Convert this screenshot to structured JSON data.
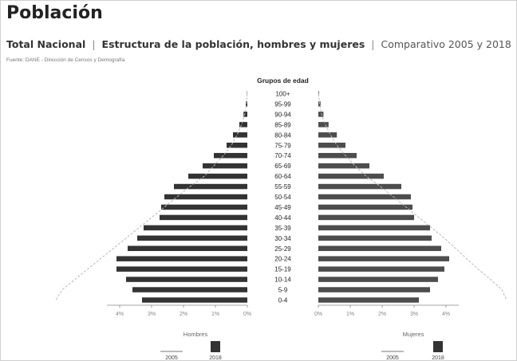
{
  "header": {
    "title": "Población",
    "subtitle_part1": "Total Nacional",
    "subtitle_part2": "Estructura de la población, hombres y mujeres",
    "subtitle_part3": "Comparativo 2005 y 2018",
    "source": "Fuente: DANE - Dirección de Censos y Demografía"
  },
  "colors": {
    "bar_men": "#333333",
    "bar_women": "#4d4d4d",
    "line_2005": "#b8b8b8",
    "text": "#222222"
  },
  "chart_data": {
    "type": "bar",
    "orientation": "horizontal-population-pyramid",
    "title": "Grupos de edad",
    "categories": [
      "100+",
      "95-99",
      "90-94",
      "85-89",
      "80-84",
      "75-79",
      "70-74",
      "65-69",
      "60-64",
      "55-59",
      "50-54",
      "45-49",
      "40-44",
      "35-39",
      "30-34",
      "25-29",
      "20-24",
      "15-19",
      "10-14",
      "5-9",
      "0-4"
    ],
    "series": [
      {
        "name": "Hombres",
        "year": "2018",
        "side": "left",
        "values": [
          0.01,
          0.05,
          0.12,
          0.25,
          0.45,
          0.65,
          1.05,
          1.4,
          1.85,
          2.3,
          2.6,
          2.7,
          2.75,
          3.25,
          3.45,
          3.75,
          4.1,
          4.1,
          3.8,
          3.6,
          3.3
        ]
      },
      {
        "name": "Mujeres",
        "year": "2018",
        "side": "right",
        "values": [
          0.02,
          0.07,
          0.16,
          0.32,
          0.58,
          0.85,
          1.2,
          1.6,
          2.05,
          2.6,
          2.9,
          2.95,
          3.0,
          3.5,
          3.55,
          3.85,
          4.1,
          3.95,
          3.75,
          3.5,
          3.15
        ]
      },
      {
        "name": "Hombres",
        "year": "2005",
        "side": "left",
        "values": [
          0.01,
          0.03,
          0.08,
          0.18,
          0.32,
          0.5,
          0.75,
          1.05,
          1.35,
          1.8,
          2.2,
          2.6,
          3.0,
          3.4,
          3.8,
          4.2,
          4.6,
          5.0,
          5.4,
          5.8,
          6.0
        ]
      },
      {
        "name": "Mujeres",
        "year": "2005",
        "side": "right",
        "values": [
          0.01,
          0.04,
          0.1,
          0.22,
          0.38,
          0.58,
          0.85,
          1.15,
          1.5,
          1.95,
          2.35,
          2.75,
          3.15,
          3.55,
          3.95,
          4.3,
          4.65,
          5.0,
          5.4,
          5.75,
          5.9
        ]
      }
    ],
    "x_ticks_left": [
      "4%",
      "3%",
      "2%",
      "1%",
      "0%"
    ],
    "x_ticks_right": [
      "0%",
      "1%",
      "2%",
      "3%",
      "4%"
    ],
    "xlim": [
      0,
      4
    ],
    "legend_left": {
      "label": "Hombres",
      "item_line": "2005",
      "item_bar": "2018"
    },
    "legend_right": {
      "label": "Mujeres",
      "item_line": "2005",
      "item_bar": "2018"
    },
    "legend_placement": "bottom",
    "grid": false
  }
}
